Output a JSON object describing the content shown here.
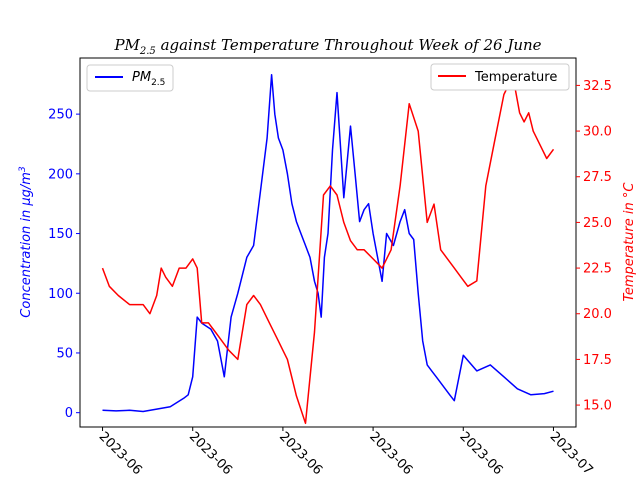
{
  "chart_data": {
    "type": "line",
    "title": "PM2.5 against Temperature Throughout Week of 26 June",
    "title_parts": {
      "pre": "PM",
      "sub": "2.5",
      "post": " against Temperature Throughout Week of 26 June"
    },
    "x_tick_labels": [
      "2023-06",
      "2023-06",
      "2023-06",
      "2023-06",
      "2023-06",
      "2023-07"
    ],
    "x_tick_values": [
      0,
      2,
      4,
      6,
      8,
      10
    ],
    "xlim": [
      -0.5,
      10.5
    ],
    "left_axis": {
      "label": "Concentration in μg/m³",
      "label_parts": {
        "pre": "Concentration in μg/m",
        "sup": "3"
      },
      "ylim": [
        -12,
        297
      ],
      "ticks": [
        0,
        50,
        100,
        150,
        200,
        250
      ],
      "color": "#0000ff"
    },
    "right_axis": {
      "label": "Temperature in °C",
      "ylim": [
        13.8,
        34.0
      ],
      "ticks": [
        15.0,
        17.5,
        20.0,
        22.5,
        25.0,
        27.5,
        30.0,
        32.5
      ],
      "tick_labels": [
        "15.0",
        "17.5",
        "20.0",
        "22.5",
        "25.0",
        "27.5",
        "30.0",
        "32.5"
      ],
      "color": "#ff0000"
    },
    "series": [
      {
        "name": "PM2.5",
        "legend_parts": {
          "pre": "PM",
          "sub": "2.5"
        },
        "axis": "left",
        "color": "#0000ff",
        "x": [
          0,
          0.3,
          0.6,
          0.9,
          1.2,
          1.5,
          1.8,
          1.9,
          2.0,
          2.1,
          2.2,
          2.4,
          2.55,
          2.7,
          2.85,
          3.0,
          3.2,
          3.35,
          3.5,
          3.65,
          3.75,
          3.82,
          3.9,
          4.0,
          4.1,
          4.2,
          4.3,
          4.4,
          4.5,
          4.6,
          4.7,
          4.78,
          4.85,
          4.92,
          5.0,
          5.1,
          5.2,
          5.35,
          5.5,
          5.6,
          5.7,
          5.8,
          5.9,
          6.0,
          6.1,
          6.2,
          6.3,
          6.45,
          6.6,
          6.7,
          6.8,
          6.9,
          7.0,
          7.1,
          7.2,
          7.3,
          7.4,
          7.5,
          7.6,
          7.7,
          7.8,
          8.0,
          8.3,
          8.6,
          8.9,
          9.2,
          9.5,
          9.8,
          10.0
        ],
        "values": [
          2,
          1.5,
          2,
          1,
          3,
          5,
          12,
          15,
          30,
          80,
          75,
          70,
          60,
          30,
          80,
          100,
          130,
          140,
          185,
          230,
          283,
          250,
          230,
          220,
          200,
          175,
          160,
          150,
          140,
          130,
          110,
          100,
          80,
          130,
          150,
          220,
          268,
          180,
          240,
          200,
          160,
          170,
          175,
          150,
          130,
          110,
          150,
          140,
          160,
          170,
          150,
          145,
          100,
          60,
          40,
          35,
          30,
          25,
          20,
          15,
          10,
          48,
          35,
          40,
          30,
          20,
          15,
          16,
          18
        ]
      },
      {
        "name": "Temperature",
        "axis": "right",
        "color": "#ff0000",
        "x": [
          0,
          0.15,
          0.35,
          0.6,
          0.9,
          1.05,
          1.2,
          1.3,
          1.4,
          1.55,
          1.7,
          1.85,
          2.0,
          2.1,
          2.2,
          2.35,
          2.5,
          2.65,
          2.8,
          3.0,
          3.2,
          3.35,
          3.5,
          3.7,
          3.9,
          4.0,
          4.1,
          4.3,
          4.5,
          4.7,
          4.9,
          5.05,
          5.2,
          5.35,
          5.5,
          5.65,
          5.8,
          6.0,
          6.2,
          6.4,
          6.6,
          6.8,
          7.0,
          7.2,
          7.35,
          7.5,
          7.65,
          7.8,
          7.95,
          8.1,
          8.3,
          8.5,
          8.7,
          8.9,
          9.1,
          9.25,
          9.35,
          9.45,
          9.55,
          9.65,
          9.75,
          9.85,
          10.0
        ],
        "values": [
          22.5,
          21.5,
          21.0,
          20.5,
          20.5,
          20.0,
          21.0,
          22.5,
          22.0,
          21.5,
          22.5,
          22.5,
          23.0,
          22.5,
          19.5,
          19.5,
          19.0,
          18.5,
          18.0,
          17.5,
          20.5,
          21.0,
          20.5,
          19.5,
          18.5,
          18.0,
          17.5,
          15.5,
          14.0,
          19.0,
          26.5,
          27.0,
          26.5,
          25.0,
          24.0,
          23.5,
          23.5,
          23.0,
          22.5,
          23.5,
          27.0,
          31.5,
          30.0,
          25.0,
          26.0,
          23.5,
          23.0,
          22.5,
          22.0,
          21.5,
          21.8,
          27.0,
          29.5,
          32.0,
          33.0,
          31.0,
          30.5,
          31.0,
          30.0,
          29.5,
          29.0,
          28.5,
          29.0
        ]
      }
    ],
    "grid": false,
    "legends": [
      {
        "series": "PM2.5",
        "placement": "upper-left"
      },
      {
        "series": "Temperature",
        "placement": "upper-right"
      }
    ]
  }
}
